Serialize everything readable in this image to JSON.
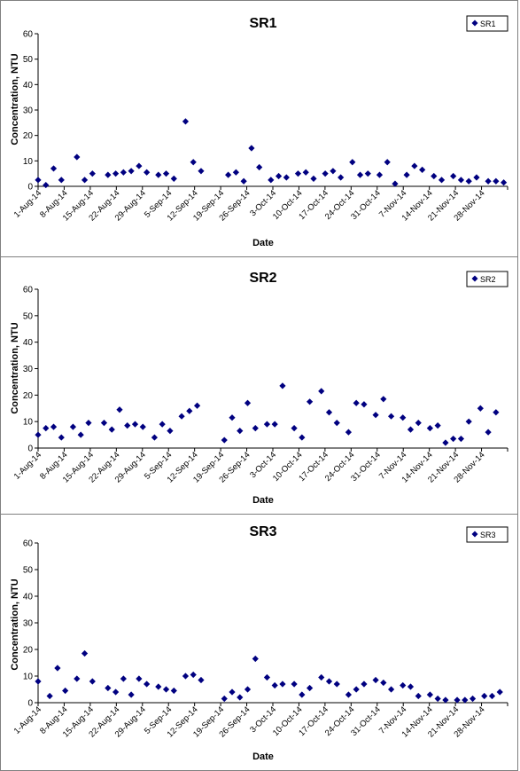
{
  "chart_data": [
    {
      "type": "scatter",
      "title": "SR1",
      "xlabel": "Date",
      "ylabel": "Concentration, NTU",
      "ylim": [
        0,
        60
      ],
      "yticks": [
        0,
        10,
        20,
        30,
        40,
        50,
        60
      ],
      "x_range": [
        "2014-08-01",
        "2014-11-30"
      ],
      "xtick_labels": [
        "1-Aug-14",
        "8-Aug-14",
        "15-Aug-14",
        "22-Aug-14",
        "29-Aug-14",
        "5-Sep-14",
        "12-Sep-14",
        "19-Sep-14",
        "26-Sep-14",
        "3-Oct-14",
        "10-Oct-14",
        "17-Oct-14",
        "24-Oct-14",
        "31-Oct-14",
        "7-Nov-14",
        "14-Nov-14",
        "21-Nov-14",
        "28-Nov-14"
      ],
      "legend_position": "top-right",
      "grid": false,
      "marker": "diamond",
      "color": "#000080",
      "series": [
        {
          "name": "SR1",
          "points": [
            {
              "x": "2014-08-01",
              "y": 2.5
            },
            {
              "x": "2014-08-03",
              "y": 0.5
            },
            {
              "x": "2014-08-05",
              "y": 7
            },
            {
              "x": "2014-08-07",
              "y": 2.5
            },
            {
              "x": "2014-08-11",
              "y": 11.5
            },
            {
              "x": "2014-08-13",
              "y": 2.5
            },
            {
              "x": "2014-08-15",
              "y": 5
            },
            {
              "x": "2014-08-19",
              "y": 4.5
            },
            {
              "x": "2014-08-21",
              "y": 5
            },
            {
              "x": "2014-08-23",
              "y": 5.5
            },
            {
              "x": "2014-08-25",
              "y": 6
            },
            {
              "x": "2014-08-27",
              "y": 8
            },
            {
              "x": "2014-08-29",
              "y": 5.5
            },
            {
              "x": "2014-09-01",
              "y": 4.5
            },
            {
              "x": "2014-09-03",
              "y": 5
            },
            {
              "x": "2014-09-05",
              "y": 3
            },
            {
              "x": "2014-09-08",
              "y": 25.5
            },
            {
              "x": "2014-09-10",
              "y": 9.5
            },
            {
              "x": "2014-09-12",
              "y": 6
            },
            {
              "x": "2014-09-19",
              "y": 4.5
            },
            {
              "x": "2014-09-21",
              "y": 5.5
            },
            {
              "x": "2014-09-23",
              "y": 2
            },
            {
              "x": "2014-09-25",
              "y": 15
            },
            {
              "x": "2014-09-27",
              "y": 7.5
            },
            {
              "x": "2014-09-30",
              "y": 2.5
            },
            {
              "x": "2014-10-02",
              "y": 4
            },
            {
              "x": "2014-10-04",
              "y": 3.5
            },
            {
              "x": "2014-10-07",
              "y": 5
            },
            {
              "x": "2014-10-09",
              "y": 5.5
            },
            {
              "x": "2014-10-11",
              "y": 3
            },
            {
              "x": "2014-10-14",
              "y": 5
            },
            {
              "x": "2014-10-16",
              "y": 6
            },
            {
              "x": "2014-10-18",
              "y": 3.5
            },
            {
              "x": "2014-10-21",
              "y": 9.5
            },
            {
              "x": "2014-10-23",
              "y": 4.5
            },
            {
              "x": "2014-10-25",
              "y": 5
            },
            {
              "x": "2014-10-28",
              "y": 4.5
            },
            {
              "x": "2014-10-30",
              "y": 9.5
            },
            {
              "x": "2014-11-01",
              "y": 1
            },
            {
              "x": "2014-11-04",
              "y": 4.5
            },
            {
              "x": "2014-11-06",
              "y": 8
            },
            {
              "x": "2014-11-08",
              "y": 6.5
            },
            {
              "x": "2014-11-11",
              "y": 4
            },
            {
              "x": "2014-11-13",
              "y": 2.5
            },
            {
              "x": "2014-11-16",
              "y": 4
            },
            {
              "x": "2014-11-18",
              "y": 2.5
            },
            {
              "x": "2014-11-20",
              "y": 2
            },
            {
              "x": "2014-11-22",
              "y": 3.5
            },
            {
              "x": "2014-11-25",
              "y": 2
            },
            {
              "x": "2014-11-27",
              "y": 2
            },
            {
              "x": "2014-11-29",
              "y": 1.5
            }
          ]
        }
      ]
    },
    {
      "type": "scatter",
      "title": "SR2",
      "xlabel": "Date",
      "ylabel": "Concentration, NTU",
      "ylim": [
        0,
        60
      ],
      "yticks": [
        0,
        10,
        20,
        30,
        40,
        50,
        60
      ],
      "x_range": [
        "2014-08-01",
        "2014-11-30"
      ],
      "xtick_labels": [
        "1-Aug-14",
        "8-Aug-14",
        "15-Aug-14",
        "22-Aug-14",
        "29-Aug-14",
        "5-Sep-14",
        "12-Sep-14",
        "19-Sep-14",
        "26-Sep-14",
        "3-Oct-14",
        "10-Oct-14",
        "17-Oct-14",
        "24-Oct-14",
        "31-Oct-14",
        "7-Nov-14",
        "14-Nov-14",
        "21-Nov-14",
        "28-Nov-14"
      ],
      "legend_position": "top-right",
      "grid": false,
      "marker": "diamond",
      "color": "#000080",
      "series": [
        {
          "name": "SR2",
          "points": [
            {
              "x": "2014-08-01",
              "y": 5
            },
            {
              "x": "2014-08-03",
              "y": 7.5
            },
            {
              "x": "2014-08-05",
              "y": 8
            },
            {
              "x": "2014-08-07",
              "y": 4
            },
            {
              "x": "2014-08-10",
              "y": 8
            },
            {
              "x": "2014-08-12",
              "y": 5
            },
            {
              "x": "2014-08-14",
              "y": 9.5
            },
            {
              "x": "2014-08-18",
              "y": 9.5
            },
            {
              "x": "2014-08-20",
              "y": 7
            },
            {
              "x": "2014-08-22",
              "y": 14.5
            },
            {
              "x": "2014-08-24",
              "y": 8.5
            },
            {
              "x": "2014-08-26",
              "y": 9
            },
            {
              "x": "2014-08-28",
              "y": 8
            },
            {
              "x": "2014-08-31",
              "y": 4
            },
            {
              "x": "2014-09-02",
              "y": 9
            },
            {
              "x": "2014-09-04",
              "y": 6.5
            },
            {
              "x": "2014-09-07",
              "y": 12
            },
            {
              "x": "2014-09-09",
              "y": 14
            },
            {
              "x": "2014-09-11",
              "y": 16
            },
            {
              "x": "2014-09-18",
              "y": 3
            },
            {
              "x": "2014-09-20",
              "y": 11.5
            },
            {
              "x": "2014-09-22",
              "y": 6.5
            },
            {
              "x": "2014-09-24",
              "y": 17
            },
            {
              "x": "2014-09-26",
              "y": 7.5
            },
            {
              "x": "2014-09-29",
              "y": 9
            },
            {
              "x": "2014-10-01",
              "y": 9
            },
            {
              "x": "2014-10-03",
              "y": 23.5
            },
            {
              "x": "2014-10-06",
              "y": 7.5
            },
            {
              "x": "2014-10-08",
              "y": 4
            },
            {
              "x": "2014-10-10",
              "y": 17.5
            },
            {
              "x": "2014-10-13",
              "y": 21.5
            },
            {
              "x": "2014-10-15",
              "y": 13.5
            },
            {
              "x": "2014-10-17",
              "y": 9.5
            },
            {
              "x": "2014-10-20",
              "y": 6
            },
            {
              "x": "2014-10-22",
              "y": 17
            },
            {
              "x": "2014-10-24",
              "y": 16.5
            },
            {
              "x": "2014-10-27",
              "y": 12.5
            },
            {
              "x": "2014-10-29",
              "y": 18.5
            },
            {
              "x": "2014-10-31",
              "y": 12
            },
            {
              "x": "2014-11-03",
              "y": 11.5
            },
            {
              "x": "2014-11-05",
              "y": 7
            },
            {
              "x": "2014-11-07",
              "y": 9.5
            },
            {
              "x": "2014-11-10",
              "y": 7.5
            },
            {
              "x": "2014-11-12",
              "y": 8.5
            },
            {
              "x": "2014-11-14",
              "y": 2
            },
            {
              "x": "2014-11-16",
              "y": 3.5
            },
            {
              "x": "2014-11-18",
              "y": 3.5
            },
            {
              "x": "2014-11-20",
              "y": 10
            },
            {
              "x": "2014-11-23",
              "y": 15
            },
            {
              "x": "2014-11-25",
              "y": 6
            },
            {
              "x": "2014-11-27",
              "y": 13.5
            }
          ]
        }
      ]
    },
    {
      "type": "scatter",
      "title": "SR3",
      "xlabel": "Date",
      "ylabel": "Concentration, NTU",
      "ylim": [
        0,
        60
      ],
      "yticks": [
        0,
        10,
        20,
        30,
        40,
        50,
        60
      ],
      "x_range": [
        "2014-08-01",
        "2014-11-30"
      ],
      "xtick_labels": [
        "1-Aug-14",
        "8-Aug-14",
        "15-Aug-14",
        "22-Aug-14",
        "29-Aug-14",
        "5-Sep-14",
        "12-Sep-14",
        "19-Sep-14",
        "26-Sep-14",
        "3-Oct-14",
        "10-Oct-14",
        "17-Oct-14",
        "24-Oct-14",
        "31-Oct-14",
        "7-Nov-14",
        "14-Nov-14",
        "21-Nov-14",
        "28-Nov-14"
      ],
      "legend_position": "top-right",
      "grid": false,
      "marker": "diamond",
      "color": "#000080",
      "series": [
        {
          "name": "SR3",
          "points": [
            {
              "x": "2014-08-01",
              "y": 8
            },
            {
              "x": "2014-08-04",
              "y": 2.5
            },
            {
              "x": "2014-08-06",
              "y": 13
            },
            {
              "x": "2014-08-08",
              "y": 4.5
            },
            {
              "x": "2014-08-11",
              "y": 9
            },
            {
              "x": "2014-08-13",
              "y": 18.5
            },
            {
              "x": "2014-08-15",
              "y": 8
            },
            {
              "x": "2014-08-19",
              "y": 5.5
            },
            {
              "x": "2014-08-21",
              "y": 4
            },
            {
              "x": "2014-08-23",
              "y": 9
            },
            {
              "x": "2014-08-25",
              "y": 3
            },
            {
              "x": "2014-08-27",
              "y": 9
            },
            {
              "x": "2014-08-29",
              "y": 7
            },
            {
              "x": "2014-09-01",
              "y": 6
            },
            {
              "x": "2014-09-03",
              "y": 5
            },
            {
              "x": "2014-09-05",
              "y": 4.5
            },
            {
              "x": "2014-09-08",
              "y": 10
            },
            {
              "x": "2014-09-10",
              "y": 10.5
            },
            {
              "x": "2014-09-12",
              "y": 8.5
            },
            {
              "x": "2014-09-18",
              "y": 1.5
            },
            {
              "x": "2014-09-20",
              "y": 4
            },
            {
              "x": "2014-09-22",
              "y": 2
            },
            {
              "x": "2014-09-24",
              "y": 5
            },
            {
              "x": "2014-09-26",
              "y": 16.5
            },
            {
              "x": "2014-09-29",
              "y": 9.5
            },
            {
              "x": "2014-10-01",
              "y": 6.5
            },
            {
              "x": "2014-10-03",
              "y": 7
            },
            {
              "x": "2014-10-06",
              "y": 7
            },
            {
              "x": "2014-10-08",
              "y": 3
            },
            {
              "x": "2014-10-10",
              "y": 5.5
            },
            {
              "x": "2014-10-13",
              "y": 9.5
            },
            {
              "x": "2014-10-15",
              "y": 8
            },
            {
              "x": "2014-10-17",
              "y": 7
            },
            {
              "x": "2014-10-20",
              "y": 3
            },
            {
              "x": "2014-10-22",
              "y": 5
            },
            {
              "x": "2014-10-24",
              "y": 7
            },
            {
              "x": "2014-10-27",
              "y": 8.5
            },
            {
              "x": "2014-10-29",
              "y": 7.5
            },
            {
              "x": "2014-10-31",
              "y": 5
            },
            {
              "x": "2014-11-03",
              "y": 6.5
            },
            {
              "x": "2014-11-05",
              "y": 6
            },
            {
              "x": "2014-11-07",
              "y": 2.5
            },
            {
              "x": "2014-11-10",
              "y": 3
            },
            {
              "x": "2014-11-12",
              "y": 1.5
            },
            {
              "x": "2014-11-14",
              "y": 1
            },
            {
              "x": "2014-11-17",
              "y": 1
            },
            {
              "x": "2014-11-19",
              "y": 1
            },
            {
              "x": "2014-11-21",
              "y": 1.5
            },
            {
              "x": "2014-11-24",
              "y": 2.5
            },
            {
              "x": "2014-11-26",
              "y": 2.5
            },
            {
              "x": "2014-11-28",
              "y": 4
            }
          ]
        }
      ]
    }
  ]
}
